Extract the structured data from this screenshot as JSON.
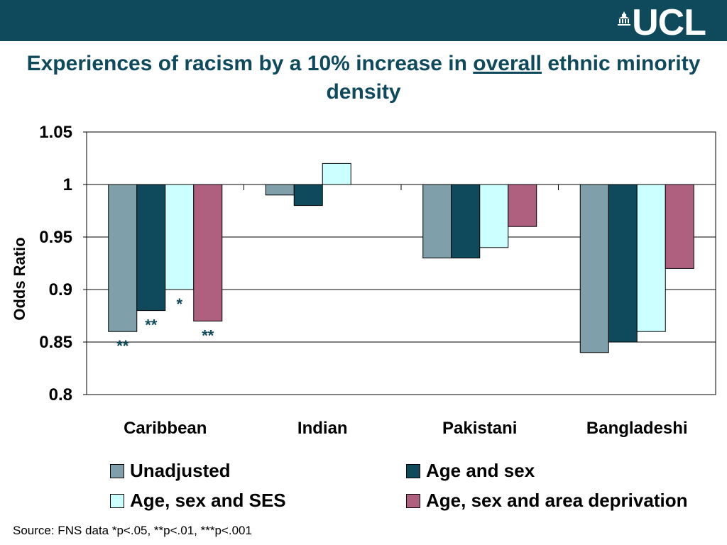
{
  "header": {
    "logo_text": "UCL",
    "title_before": "Experiences of racism by a 10% increase in ",
    "title_underlined": "overall",
    "title_after": " ethnic minority density"
  },
  "colors": {
    "header_bar": "#0e4a5c",
    "title": "#0e4a5c"
  },
  "chart_data": {
    "type": "bar",
    "categories": [
      "Caribbean",
      "Indian",
      "Pakistani",
      "Bangladeshi"
    ],
    "ylabel": "Odds Ratio",
    "ylim": [
      0.8,
      1.05
    ],
    "baseline": 1,
    "yticks": [
      "1.05",
      "1",
      "0.95",
      "0.9",
      "0.85",
      "0.8"
    ],
    "ytick_values": [
      1.05,
      1,
      0.95,
      0.9,
      0.85,
      0.8
    ],
    "grid": true,
    "legend_position": "bottom",
    "series": [
      {
        "name": "Unadjusted",
        "color": "#7f9faa",
        "values": [
          0.86,
          0.99,
          0.93,
          0.84
        ],
        "annotations": [
          "**",
          null,
          null,
          null
        ]
      },
      {
        "name": "Age and sex",
        "color": "#0e4a5c",
        "values": [
          0.88,
          0.98,
          0.93,
          0.85
        ],
        "annotations": [
          "**",
          null,
          null,
          null
        ]
      },
      {
        "name": "Age, sex and SES",
        "color": "#ccffff",
        "values": [
          0.9,
          1.02,
          0.94,
          0.86
        ],
        "annotations": [
          "*",
          null,
          null,
          null
        ]
      },
      {
        "name": "Age, sex and area deprivation",
        "color": "#b0607f",
        "values": [
          0.87,
          null,
          0.96,
          0.92
        ],
        "annotations": [
          "**",
          null,
          null,
          null
        ]
      }
    ]
  },
  "footer": {
    "source": "Source: FNS data   *p<.05, **p<.01, ***p<.001"
  }
}
